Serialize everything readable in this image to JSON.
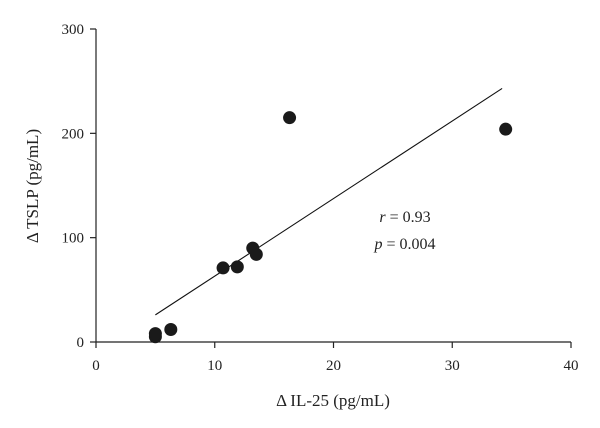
{
  "chart_data": {
    "type": "scatter",
    "xlabel": "Δ IL-25 (pg/mL)",
    "ylabel": "Δ TSLP (pg/mL)",
    "xlim": [
      0,
      40
    ],
    "ylim": [
      0,
      300
    ],
    "x_ticks": [
      0,
      10,
      20,
      30,
      40
    ],
    "y_ticks": [
      0,
      100,
      200,
      300
    ],
    "grid": false,
    "points": [
      {
        "x": 5.0,
        "y": 5
      },
      {
        "x": 5.0,
        "y": 8
      },
      {
        "x": 6.3,
        "y": 12
      },
      {
        "x": 10.7,
        "y": 71
      },
      {
        "x": 11.9,
        "y": 72
      },
      {
        "x": 13.2,
        "y": 90
      },
      {
        "x": 13.5,
        "y": 84
      },
      {
        "x": 16.3,
        "y": 215
      },
      {
        "x": 34.5,
        "y": 204
      }
    ],
    "fit_line": {
      "x": [
        5.0,
        34.2
      ],
      "y": [
        26,
        243
      ]
    },
    "annotations": {
      "r_symbol": "r",
      "r_value": " = 0.93",
      "p_symbol": "p",
      "p_value": " = 0.004"
    }
  }
}
